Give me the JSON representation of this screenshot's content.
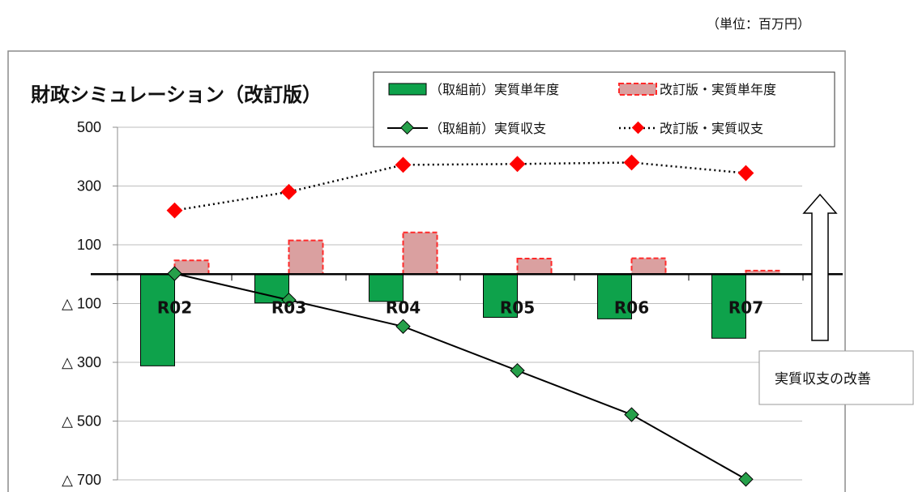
{
  "unit_note": "（単位：百万円）",
  "colors": {
    "green_bar": "#0ea24b",
    "pink_bar": "#daa0a0",
    "pink_border": "#ff2a2a",
    "red_marker": "#ff0000",
    "green_marker": "#26a04a",
    "line_black": "#000000"
  },
  "annotation": {
    "text": "実質収支の改善",
    "arrow": "up-arrow"
  },
  "chart_data": {
    "type": "bar",
    "title": "財政シミュレーション（改訂版）",
    "categories": [
      "R02",
      "R03",
      "R04",
      "R05",
      "R06",
      "R07"
    ],
    "y_tick_labels": [
      "500",
      "300",
      "100",
      "△ 100",
      "△ 300",
      "△ 500",
      "△ 700"
    ],
    "y_tick_values": [
      500,
      300,
      100,
      -100,
      -300,
      -500,
      -700
    ],
    "ylim": [
      -700,
      500
    ],
    "grid": true,
    "legend_position": "top-right",
    "series": [
      {
        "name": "（取組前）実質単年度",
        "kind": "bar",
        "values": [
          -312,
          -98,
          -93,
          -147,
          -152,
          -218
        ]
      },
      {
        "name": "改訂版・実質単年度",
        "kind": "bar",
        "values": [
          47,
          115,
          142,
          53,
          54,
          12
        ]
      },
      {
        "name": "（取組前）実質収支",
        "kind": "line",
        "values": [
          2,
          -88,
          -178,
          -328,
          -478,
          -698
        ]
      },
      {
        "name": "改訂版・実質収支",
        "kind": "line",
        "values": [
          217,
          280,
          372,
          375,
          380,
          344
        ]
      }
    ]
  }
}
